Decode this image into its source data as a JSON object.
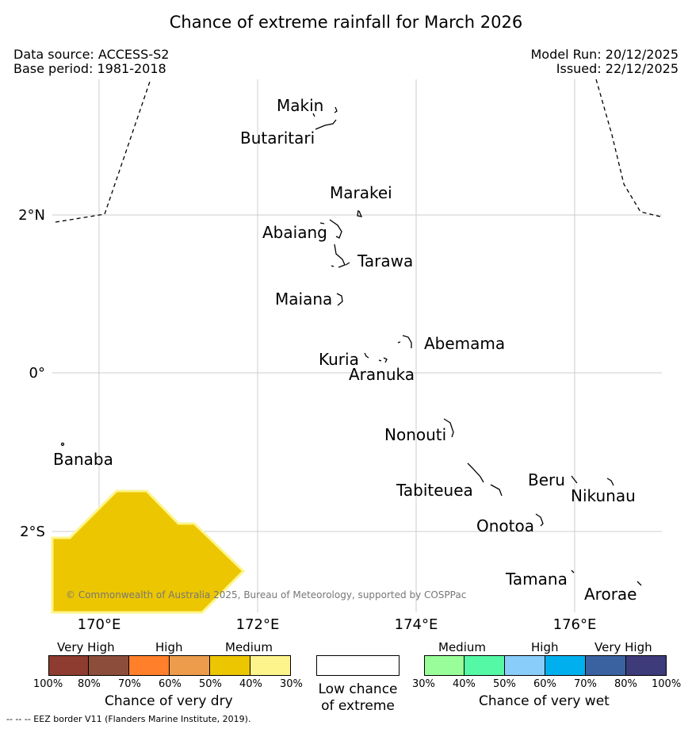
{
  "title": "Chance of extreme rainfall for March 2026",
  "header_left": [
    "Data source: ACCESS-S2",
    "Base period: 1981-2018"
  ],
  "header_right": [
    "Model Run: 20/12/2025",
    "Issued: 22/12/2025"
  ],
  "axes": {
    "lat_ticks": [
      "2°N",
      "0°",
      "2°S"
    ],
    "lon_ticks": [
      "170°E",
      "172°E",
      "174°E",
      "176°E"
    ]
  },
  "places": [
    {
      "name": "Makin"
    },
    {
      "name": "Butaritari"
    },
    {
      "name": "Marakei"
    },
    {
      "name": "Abaiang"
    },
    {
      "name": "Tarawa"
    },
    {
      "name": "Maiana"
    },
    {
      "name": "Abemama"
    },
    {
      "name": "Kuria"
    },
    {
      "name": "Aranuka"
    },
    {
      "name": "Banaba"
    },
    {
      "name": "Nonouti"
    },
    {
      "name": "Tabiteuea"
    },
    {
      "name": "Beru"
    },
    {
      "name": "Nikunau"
    },
    {
      "name": "Onotoa"
    },
    {
      "name": "Tamana"
    },
    {
      "name": "Arorae"
    }
  ],
  "copyright": "© Commonwealth of Australia 2025, Bureau of Meteorology, supported by COSPPac",
  "legend": {
    "dry": {
      "levels": [
        "Very High",
        "High",
        "Medium"
      ],
      "colors": [
        "#8e3b30",
        "#8d4d3b",
        "#ff7f2a",
        "#ec9c4b",
        "#ecc600",
        "#fdf58b"
      ],
      "ticks": [
        "100%",
        "80%",
        "70%",
        "60%",
        "50%",
        "40%",
        "30%"
      ],
      "caption": "Chance of very dry"
    },
    "low": {
      "caption_lines": [
        "Low chance",
        "of extreme"
      ],
      "color": "#ffffff"
    },
    "wet": {
      "levels": [
        "Medium",
        "High",
        "Very High"
      ],
      "colors": [
        "#99fe99",
        "#55f8a5",
        "#89cdfb",
        "#00b0ee",
        "#3a62a1",
        "#3e3b7a"
      ],
      "ticks": [
        "30%",
        "40%",
        "50%",
        "60%",
        "70%",
        "80%",
        "100%"
      ],
      "caption": "Chance of very wet"
    }
  },
  "footnote": "--  --  -- EEZ border V11 (Flanders Marine Institute, 2019).",
  "colors": {
    "dry_region_fill": "#ecc600",
    "dry_region_edge": "#fdf58b",
    "gridline": "#cccccc"
  }
}
